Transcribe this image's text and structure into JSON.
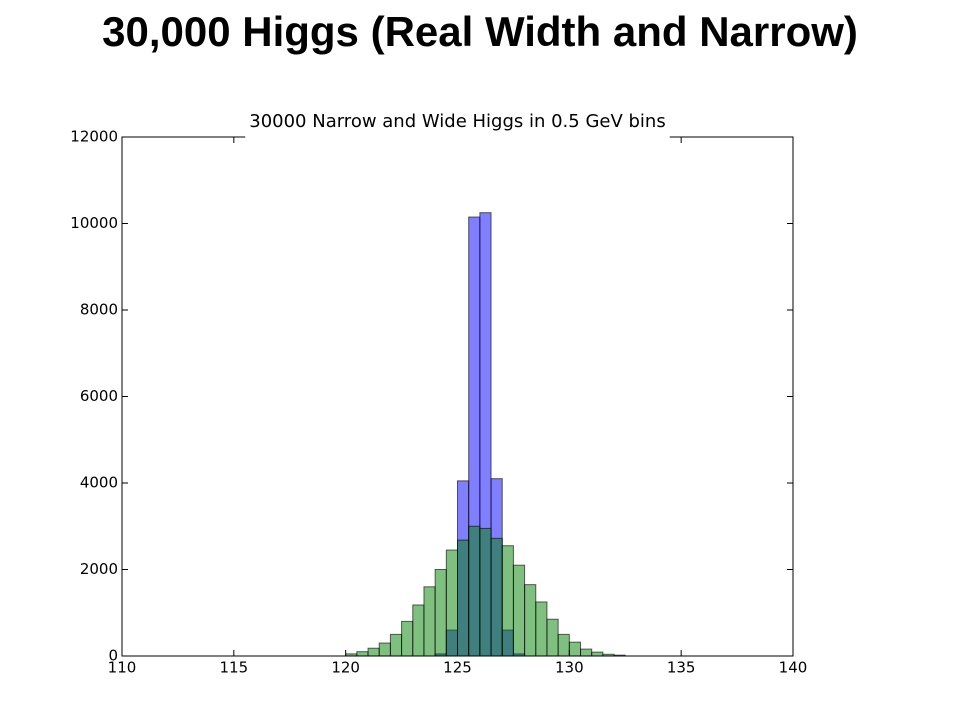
{
  "heading": "30,000 Higgs (Real Width and Narrow)",
  "chart_data": {
    "type": "histogram",
    "title": "30000 Narrow and Wide Higgs in 0.5 GeV bins",
    "bins": [
      110,
      110.5,
      111,
      111.5,
      112,
      112.5,
      113,
      113.5,
      114,
      114.5,
      115,
      115.5,
      116,
      116.5,
      117,
      117.5,
      118,
      118.5,
      119,
      119.5,
      120,
      120.5,
      121,
      121.5,
      122,
      122.5,
      123,
      123.5,
      124,
      124.5,
      125,
      125.5,
      126,
      126.5,
      127,
      127.5,
      128,
      128.5,
      129,
      129.5,
      130,
      130.5,
      131,
      131.5,
      132,
      132.5,
      133,
      133.5,
      134,
      134.5,
      135,
      135.5,
      136,
      136.5,
      137,
      137.5,
      138,
      138.5,
      139,
      139.5,
      140
    ],
    "series": [
      {
        "color": "#0000ff",
        "values": [
          0,
          0,
          0,
          0,
          0,
          0,
          0,
          0,
          0,
          0,
          0,
          0,
          0,
          0,
          0,
          0,
          0,
          0,
          0,
          0,
          0,
          0,
          0,
          0,
          0,
          0,
          0,
          0,
          50,
          600,
          4050,
          10150,
          10250,
          4100,
          600,
          50,
          0,
          0,
          0,
          0,
          0,
          0,
          0,
          0,
          0,
          0,
          0,
          0,
          0,
          0,
          0,
          0,
          0,
          0,
          0,
          0,
          0,
          0,
          0,
          0
        ]
      },
      {
        "color": "#008000",
        "values": [
          0,
          0,
          0,
          0,
          0,
          0,
          0,
          0,
          0,
          0,
          0,
          0,
          0,
          0,
          0,
          0,
          0,
          0,
          0,
          0,
          50,
          100,
          180,
          300,
          500,
          800,
          1180,
          1600,
          2000,
          2450,
          2680,
          3000,
          2950,
          2720,
          2550,
          2100,
          1650,
          1250,
          850,
          500,
          320,
          160,
          90,
          40,
          20,
          0,
          0,
          0,
          0,
          0,
          0,
          0,
          0,
          0,
          0,
          0,
          0,
          0,
          0,
          0
        ]
      }
    ],
    "xlim": [
      110,
      140
    ],
    "xticks": [
      110,
      115,
      120,
      125,
      130,
      135,
      140
    ],
    "ylim": [
      0,
      12000
    ],
    "yticks": [
      0,
      2000,
      4000,
      6000,
      8000,
      10000,
      12000
    ]
  }
}
